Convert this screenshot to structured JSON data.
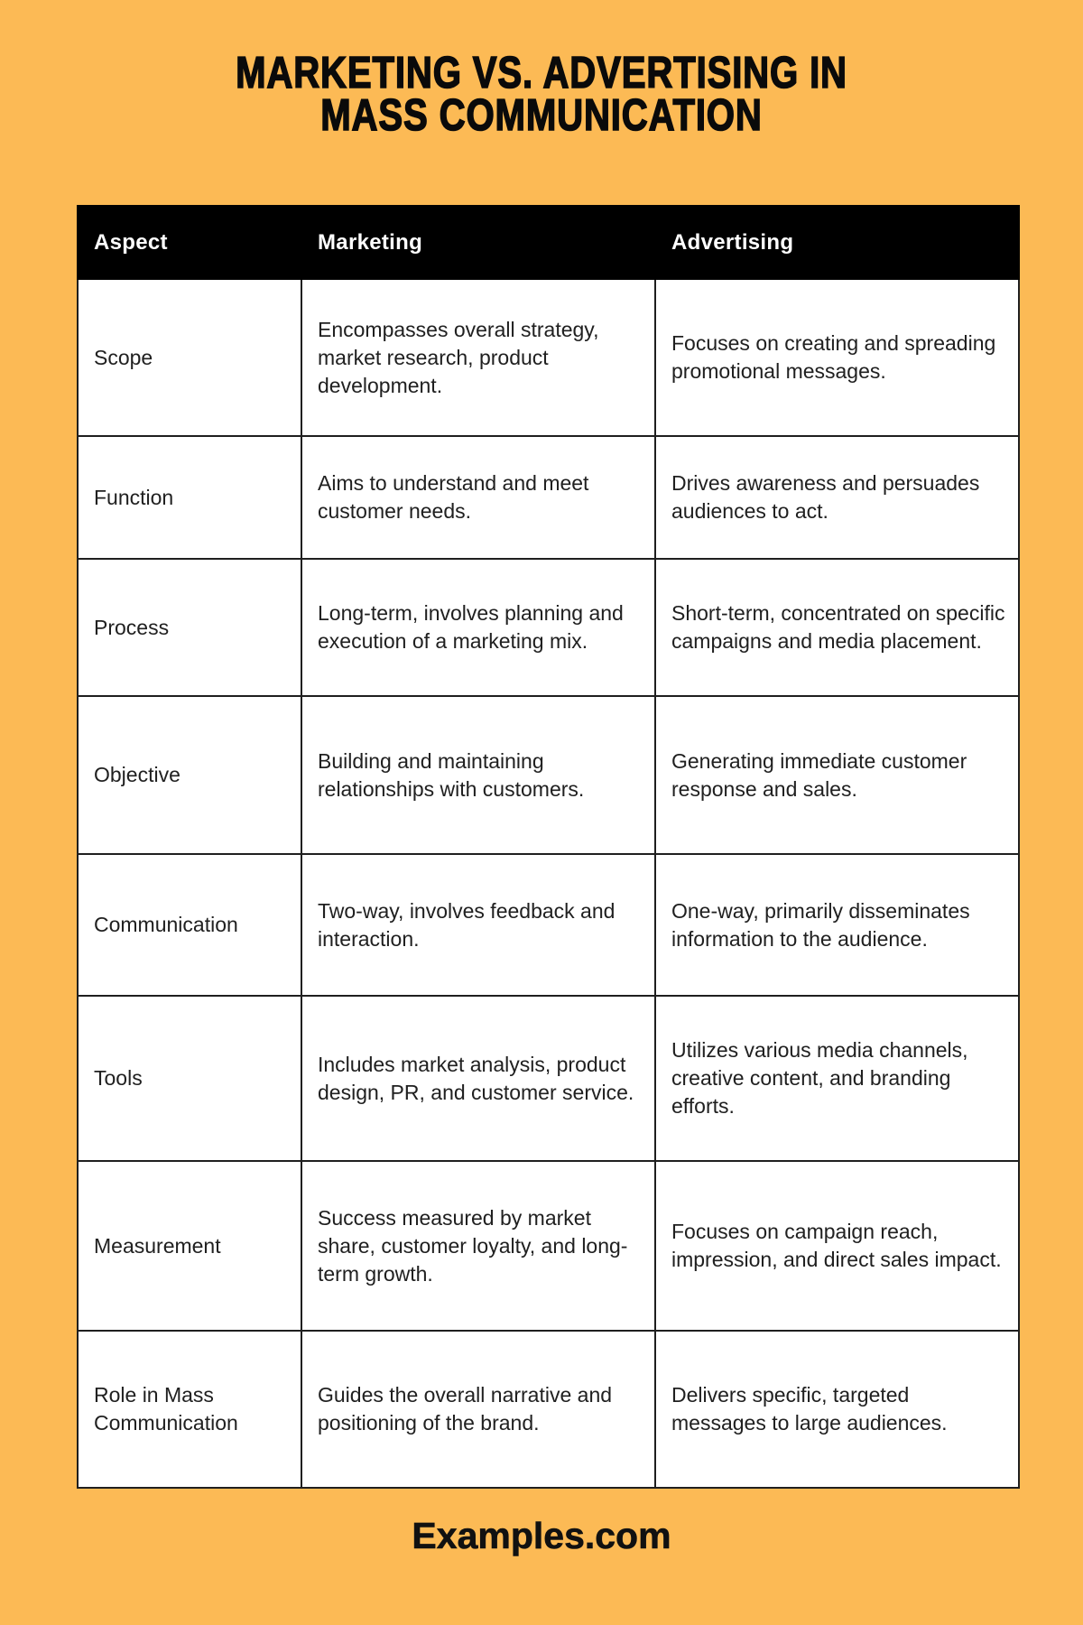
{
  "page": {
    "title_line1": "MARKETING VS. ADVERTISING IN",
    "title_line2": "MASS COMMUNICATION",
    "footer": "Examples.com"
  },
  "theme": {
    "background": "#FCBA55",
    "header_bg": "#000000",
    "header_text": "#FFFFFF",
    "cell_bg": "#FFFFFF",
    "body_text": "#202020",
    "border": "#1F1F1F",
    "title_color": "#0A0A0A"
  },
  "table": {
    "header": {
      "aspect": "Aspect",
      "marketing": "Marketing",
      "advertising": "Advertising"
    },
    "rows": [
      {
        "aspect": "Scope",
        "marketing": "Encompasses overall strategy, market research, product development.",
        "advertising": "Focuses on creating and spreading promotional messages."
      },
      {
        "aspect": "Function",
        "marketing": "Aims to understand and meet customer needs.",
        "advertising": "Drives awareness and persuades audiences to act."
      },
      {
        "aspect": "Process",
        "marketing": "Long-term, involves planning and execution of a marketing mix.",
        "advertising": "Short-term, concentrated on specific campaigns and media placement."
      },
      {
        "aspect": "Objective",
        "marketing": "Building and maintaining relationships with customers.",
        "advertising": "Generating immediate customer response and sales."
      },
      {
        "aspect": "Communication",
        "marketing": "Two-way, involves feedback and interaction.",
        "advertising": "One-way, primarily disseminates information to the audience."
      },
      {
        "aspect": "Tools",
        "marketing": "Includes market analysis, product design, PR, and customer service.",
        "advertising": "Utilizes various media channels, creative content, and branding efforts."
      },
      {
        "aspect": "Measurement",
        "marketing": "Success measured by market share, customer loyalty, and long-term growth.",
        "advertising": "Focuses on campaign reach, impression, and direct sales impact."
      },
      {
        "aspect": "Role in Mass Communication",
        "marketing": "Guides the overall narrative and positioning of the brand.",
        "advertising": "Delivers specific, targeted messages to large audiences."
      }
    ]
  }
}
